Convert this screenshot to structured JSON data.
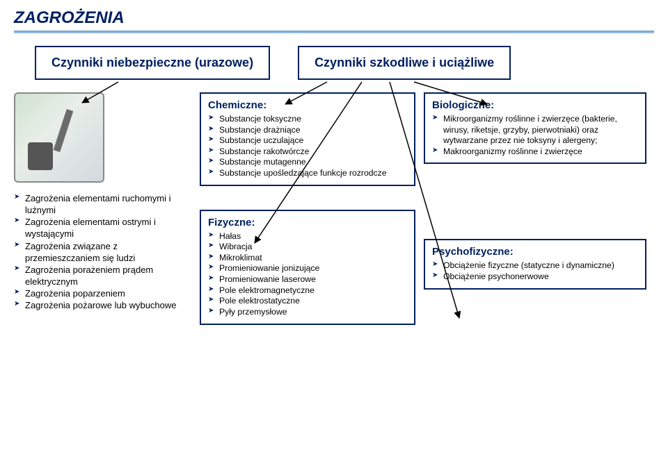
{
  "colors": {
    "title": "#002060",
    "border": "#002060",
    "bullet": "#002060",
    "rule_top": "#6699cc",
    "rule_bottom": "#a8c8e0",
    "bg": "#ffffff",
    "text": "#000000"
  },
  "title": "ZAGROŻENIA",
  "top_boxes": {
    "left": "Czynniki niebezpieczne (urazowe)",
    "right": "Czynniki szkodliwe i uciążliwe"
  },
  "left": {
    "items": [
      "Zagrożenia elementami ruchomymi i luźnymi",
      "Zagrożenia elementami ostrymi i wystającymi",
      "Zagrożenia związane z przemieszczaniem się ludzi",
      "Zagrożenia porażeniem prądem elektrycznym",
      "Zagrożenia poparzeniem",
      "Zagrożenia pożarowe lub wybuchowe"
    ]
  },
  "chemical": {
    "header": "Chemiczne:",
    "items": [
      "Substancje toksyczne",
      "Substancje drażniące",
      "Substancje uczulające",
      "Substancje rakotwórcze",
      "Substancje mutagenne",
      "Substancje upośledzające funkcje rozrodcze"
    ]
  },
  "physical": {
    "header": "Fizyczne:",
    "items": [
      "Hałas",
      "Wibracja",
      "Mikroklimat",
      "Promieniowanie jonizujące",
      "Promieniowanie laserowe",
      "Pole elektromagnetyczne",
      "Pole elektrostatyczne",
      "Pyły przemysłowe"
    ]
  },
  "biological": {
    "header": "Biologiczne:",
    "items": [
      "Mikroorganizmy roślinne i zwierzęce (bakterie, wirusy, riketsje, grzyby, pierwotniaki) oraz wytwarzane przez nie toksyny i alergeny;",
      "Makroorganizmy roślinne i zwierzęce"
    ]
  },
  "psycho": {
    "header": "Psychofizyczne:",
    "items": [
      "Obciążenie fizyczne (statyczne i dynamiczne)",
      "Obciążenie psychonerwowe"
    ]
  },
  "arrows": {
    "stroke": "#000000",
    "width": 1.5
  }
}
